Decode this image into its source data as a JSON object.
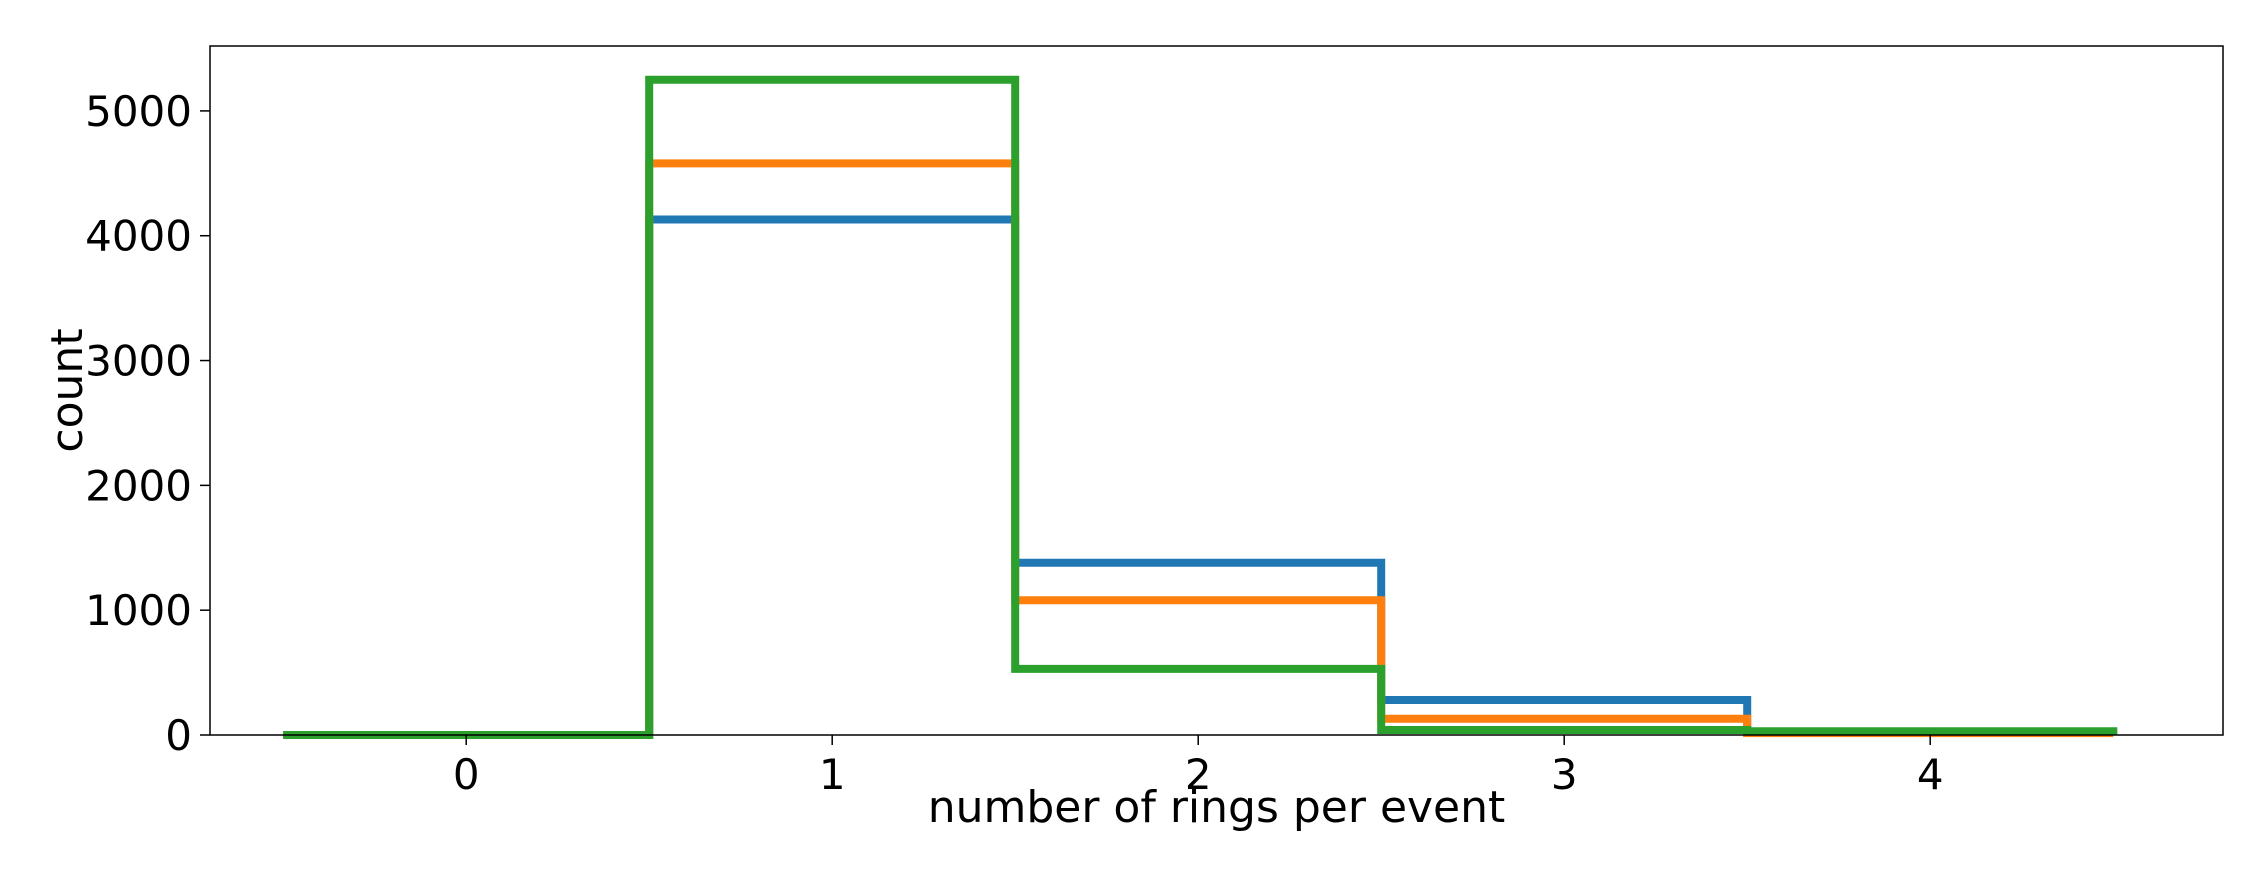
{
  "chart_data": {
    "type": "step-histogram",
    "title": "",
    "xlabel": "number of rings per event",
    "ylabel": "count",
    "xlim": [
      -0.7,
      4.8
    ],
    "ylim": [
      0,
      5520
    ],
    "x_ticks": [
      0,
      1,
      2,
      3,
      4
    ],
    "x_tick_labels": [
      "0",
      "1",
      "2",
      "3",
      "4"
    ],
    "y_ticks": [
      0,
      1000,
      2000,
      3000,
      4000,
      5000
    ],
    "y_tick_labels": [
      "0",
      "1000",
      "2000",
      "3000",
      "4000",
      "5000"
    ],
    "bin_edges": [
      -0.5,
      0.5,
      1.5,
      2.5,
      3.5,
      4.5
    ],
    "grid": false,
    "legend": "none",
    "series": [
      {
        "color": "#1f77b4",
        "values": [
          0,
          4130,
          1380,
          280,
          20
        ]
      },
      {
        "color": "#ff7f0e",
        "values": [
          0,
          4580,
          1080,
          130,
          15
        ]
      },
      {
        "color": "#2ca02c",
        "values": [
          0,
          5250,
          530,
          40,
          30
        ]
      }
    ]
  }
}
